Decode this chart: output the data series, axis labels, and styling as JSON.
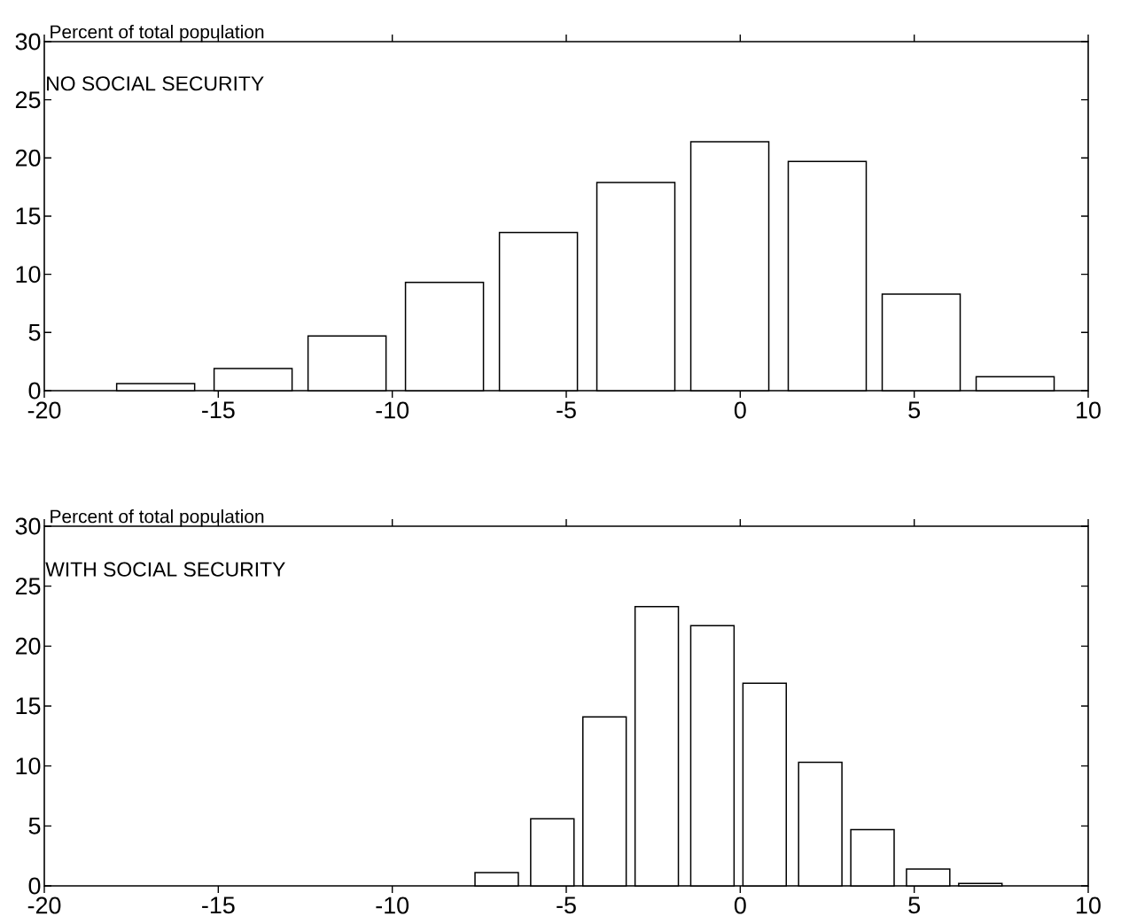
{
  "chart_data": [
    {
      "type": "bar",
      "ylabel": "Percent of total population",
      "annotations": [
        "NO SOCIAL SECURITY"
      ],
      "color": "#ffffff",
      "x": [
        -16.8,
        -14.0,
        -11.3,
        -8.5,
        -5.8,
        -3.0,
        -0.3,
        2.5,
        5.2,
        7.9
      ],
      "values": [
        0.6,
        1.9,
        4.7,
        9.3,
        13.6,
        17.9,
        21.4,
        19.7,
        8.3,
        1.2
      ],
      "xlim": [
        -20,
        10
      ],
      "xticks": [
        -20,
        -15,
        -10,
        -5,
        0,
        5,
        10
      ],
      "ylim": [
        0,
        30
      ],
      "yticks": [
        0,
        5,
        10,
        15,
        20,
        25,
        30
      ]
    },
    {
      "type": "bar",
      "ylabel": "Percent of total population",
      "annotations": [
        "WITH SOCIAL SECURITY"
      ],
      "color": "#ffffff",
      "x": [
        -7.0,
        -5.4,
        -3.9,
        -2.4,
        -0.8,
        0.7,
        2.3,
        3.8,
        5.4,
        6.9
      ],
      "values": [
        1.1,
        5.6,
        14.1,
        23.3,
        21.7,
        16.9,
        10.3,
        4.7,
        1.4,
        0.2
      ],
      "xlim": [
        -20,
        10
      ],
      "xticks": [
        -20,
        -15,
        -10,
        -5,
        0,
        5,
        10
      ],
      "ylim": [
        0,
        30
      ],
      "yticks": [
        0,
        5,
        10,
        15,
        20,
        25,
        30
      ]
    }
  ]
}
